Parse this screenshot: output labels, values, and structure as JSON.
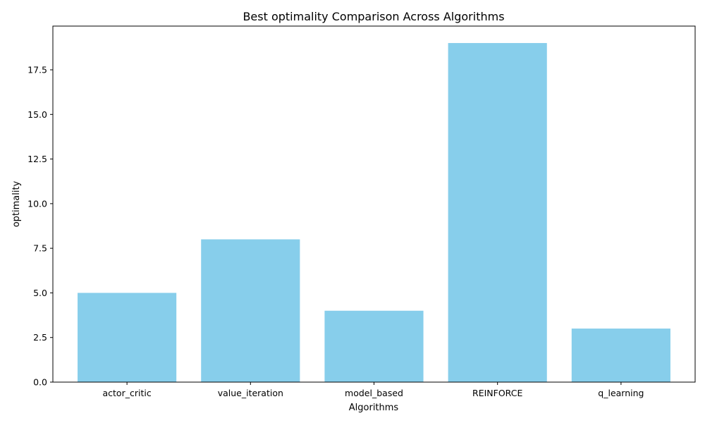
{
  "chart_data": {
    "type": "bar",
    "title": "Best optimality Comparison Across Algorithms",
    "xlabel": "Algorithms",
    "ylabel": "optimality",
    "categories": [
      "actor_critic",
      "value_iteration",
      "model_based",
      "REINFORCE",
      "q_learning"
    ],
    "values": [
      5,
      8,
      4,
      19,
      3
    ],
    "ylim": [
      0,
      19.95
    ],
    "yticks": [
      0,
      2.5,
      5,
      7.5,
      10,
      12.5,
      15,
      17.5
    ],
    "ytick_labels": [
      "0.0",
      "2.5",
      "5.0",
      "7.5",
      "10.0",
      "12.5",
      "15.0",
      "17.5"
    ],
    "bar_color": "#87ceeb",
    "grid": false,
    "legend": "none"
  }
}
